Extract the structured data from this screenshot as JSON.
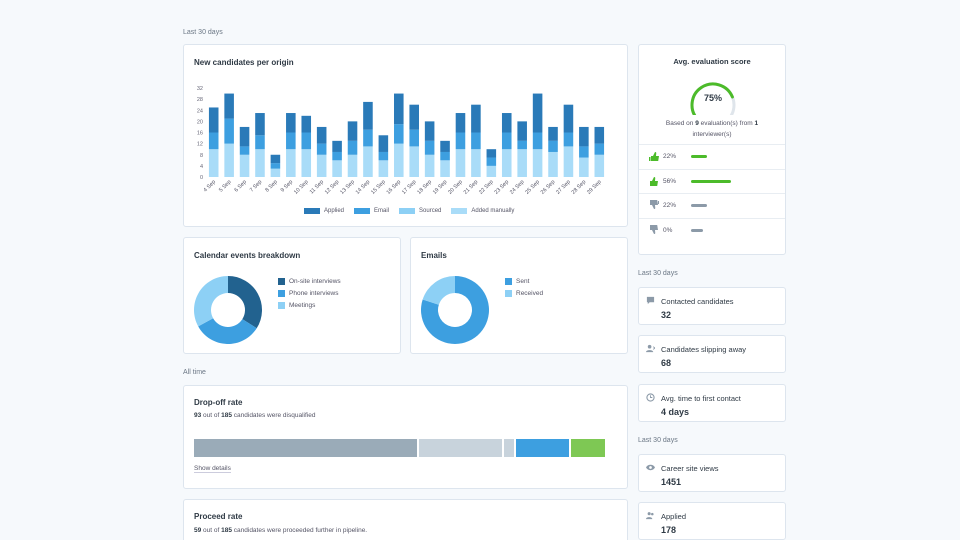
{
  "sections": {
    "last30_top": "Last 30 days",
    "all_time": "All time",
    "last30_right1": "Last 30 days",
    "last30_right2": "Last 30 days"
  },
  "new_candidates": {
    "title": "New candidates per origin"
  },
  "chart_data": [
    {
      "type": "bar",
      "stacked": true,
      "categories": [
        "4 Sep",
        "5 Sep",
        "6 Sep",
        "7 Sep",
        "8 Sep",
        "9 Sep",
        "10 Sep",
        "11 Sep",
        "12 Sep",
        "13 Sep",
        "14 Sep",
        "15 Sep",
        "16 Sep",
        "17 Sep",
        "18 Sep",
        "19 Sep",
        "20 Sep",
        "21 Sep",
        "22 Sep",
        "23 Sep",
        "24 Sep",
        "25 Sep",
        "26 Sep",
        "27 Sep",
        "28 Sep",
        "29 Sep"
      ],
      "series": [
        {
          "name": "Added manually",
          "values": [
            10,
            12,
            8,
            10,
            3,
            10,
            10,
            8,
            6,
            8,
            11,
            6,
            12,
            11,
            8,
            6,
            10,
            10,
            4,
            10,
            10,
            10,
            9,
            11,
            7,
            8
          ]
        },
        {
          "name": "Sourced",
          "values": [
            0,
            0,
            0,
            0,
            0,
            0,
            0,
            0,
            0,
            0,
            0,
            0,
            0,
            0,
            0,
            0,
            0,
            0,
            0,
            0,
            0,
            0,
            0,
            0,
            0,
            0
          ]
        },
        {
          "name": "Email",
          "values": [
            6,
            9,
            3,
            5,
            2,
            6,
            6,
            4,
            3,
            5,
            6,
            3,
            7,
            6,
            5,
            3,
            6,
            6,
            3,
            6,
            3,
            6,
            4,
            5,
            4,
            4
          ]
        },
        {
          "name": "Applied",
          "values": [
            9,
            9,
            7,
            8,
            3,
            7,
            6,
            6,
            4,
            7,
            10,
            6,
            11,
            9,
            7,
            4,
            7,
            10,
            3,
            7,
            7,
            14,
            5,
            10,
            7,
            6
          ]
        }
      ],
      "yticks": [
        0,
        4,
        8,
        12,
        16,
        20,
        24,
        28,
        32
      ],
      "ylim": [
        0,
        32
      ],
      "colors": {
        "Applied": "#2a7ab8",
        "Email": "#3d9fe0",
        "Sourced": "#8dd0f5",
        "Added manually": "#a9dcf8"
      },
      "legend_order": [
        "Applied",
        "Email",
        "Sourced",
        "Added manually"
      ]
    },
    {
      "type": "pie",
      "title": "Calendar events breakdown",
      "labels": [
        "On-site interviews",
        "Phone interviews",
        "Meetings"
      ],
      "values": [
        34,
        33,
        33
      ],
      "colors": [
        "#22628f",
        "#3d9fe0",
        "#8dd0f5"
      ]
    },
    {
      "type": "pie",
      "title": "Emails",
      "labels": [
        "Sent",
        "Received"
      ],
      "values": [
        80,
        20
      ],
      "colors": [
        "#3d9fe0",
        "#8dd0f5"
      ]
    }
  ],
  "calendar": {
    "title": "Calendar events breakdown",
    "legend": [
      "On-site interviews",
      "Phone interviews",
      "Meetings"
    ]
  },
  "emails": {
    "title": "Emails",
    "legend": [
      "Sent",
      "Received"
    ]
  },
  "dropoff": {
    "title": "Drop-off rate",
    "count": "93",
    "mid": " out of ",
    "total": "185",
    "tail": " candidates were disqualified",
    "segments": [
      {
        "fraction": 0.53,
        "color": "#9aabb8"
      },
      {
        "fraction": 0.2,
        "color": "#c8d3dc"
      },
      {
        "fraction": 0.03,
        "color": "#c8d3dc"
      },
      {
        "fraction": 0.13,
        "color": "#3d9fe0"
      },
      {
        "fraction": 0.083,
        "color": "#7ec854"
      }
    ],
    "link": "Show details"
  },
  "proceed": {
    "title": "Proceed rate",
    "count": "59",
    "mid": " out of ",
    "total": "185",
    "tail": " candidates were proceeded further in pipeline."
  },
  "evaluation": {
    "title": "Avg. evaluation score",
    "score": "75%",
    "score_value": 0.75,
    "based_prefix": "Based on ",
    "evals": "9",
    "based_mid": " evaluation(s) from ",
    "interviewers": "1",
    "based_suffix": "interviewer(s)",
    "rows": [
      {
        "icon": "double-thumbs-up-icon",
        "pct": "22%",
        "value": 0.22,
        "color": "#4cbb2a"
      },
      {
        "icon": "thumbs-up-icon",
        "pct": "56%",
        "value": 0.56,
        "color": "#4cbb2a"
      },
      {
        "icon": "thumbs-down-icon",
        "pct": "22%",
        "value": 0.22,
        "color": "#8c9aa8"
      },
      {
        "icon": "thumbs-down-single-icon",
        "pct": "0%",
        "value": 0.0,
        "color": "#8c9aa8"
      }
    ]
  },
  "stats": {
    "contacted": {
      "label": "Contacted candidates",
      "value": "32",
      "icon": "chat-icon"
    },
    "slipping": {
      "label": "Candidates slipping away",
      "value": "68",
      "icon": "person-icon"
    },
    "time_first": {
      "label": "Avg. time to first contact",
      "value": "4 days",
      "icon": "clock-icon"
    },
    "views": {
      "label": "Career site views",
      "value": "1451",
      "icon": "eye-icon"
    },
    "applied": {
      "label": "Applied",
      "value": "178",
      "icon": "people-icon"
    }
  }
}
